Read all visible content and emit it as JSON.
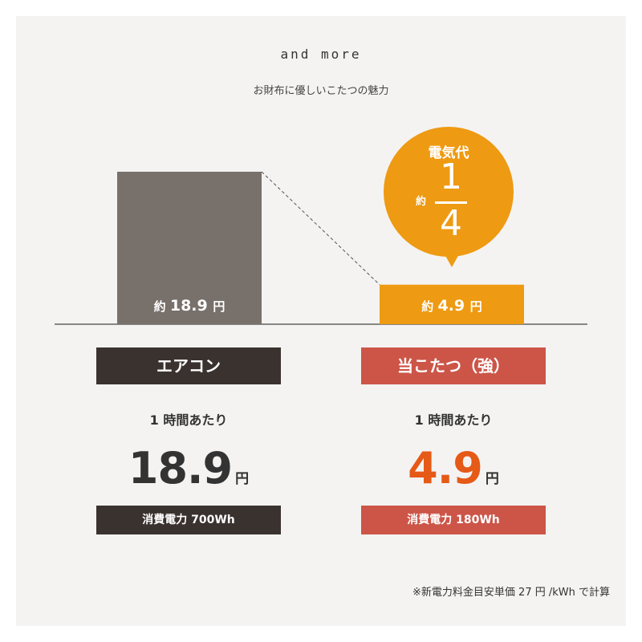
{
  "heading": "and more",
  "subheading": "お財布に優しいこたつの魅力",
  "bubble": {
    "title": "電気代",
    "prefix": "約",
    "numerator": "1",
    "denominator": "4",
    "color": "#ee9a12"
  },
  "chart_data": {
    "type": "bar",
    "title": "",
    "categories": [
      "エアコン",
      "当こたつ（強）"
    ],
    "values": [
      18.9,
      4.9
    ],
    "ylim": [
      0,
      18.9
    ],
    "grid": false,
    "bar_labels": [
      {
        "prefix": "約 ",
        "value": "18.9",
        "unit": "円"
      },
      {
        "prefix": "約 ",
        "value": "4.9",
        "unit": "円"
      }
    ],
    "colors": [
      "#77706b",
      "#ee9a12"
    ]
  },
  "items": [
    {
      "name": "エアコン",
      "per_hour": "1 時間あたり",
      "price": "18.9",
      "unit": "円",
      "power": "消費電力 700Wh",
      "box_color": "#3a322f",
      "price_color": "#333333"
    },
    {
      "name": "当こたつ（強）",
      "per_hour": "1 時間あたり",
      "price": "4.9",
      "unit": "円",
      "power": "消費電力 180Wh",
      "box_color": "#cc5548",
      "price_color": "#e55a17"
    }
  ],
  "footnote": "※新電力料金目安単価 27 円 /kWh で計算"
}
